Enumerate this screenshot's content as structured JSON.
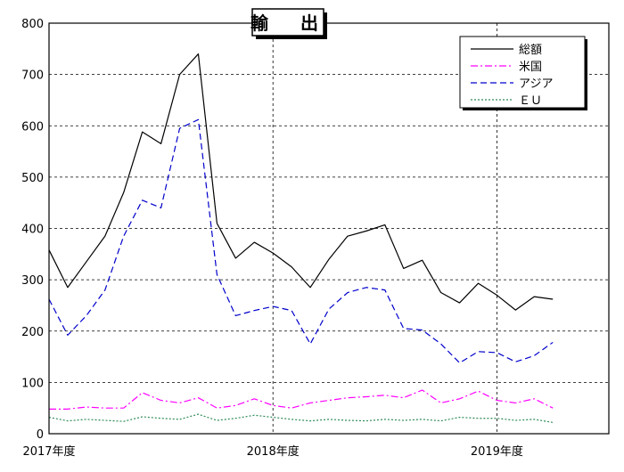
{
  "chart_data": {
    "type": "line",
    "title": "輸　出",
    "xlabel": "",
    "ylabel": "",
    "ylim": [
      0,
      800
    ],
    "yticks": [
      0,
      100,
      200,
      300,
      400,
      500,
      600,
      700,
      800
    ],
    "xlim": [
      0,
      30
    ],
    "x_tick_labels": [
      {
        "label": "2017年度",
        "x": 0
      },
      {
        "label": "2018年度",
        "x": 12
      },
      {
        "label": "2019年度",
        "x": 24
      }
    ],
    "grid": true,
    "legend_position": "top-right",
    "x": [
      0,
      1,
      2,
      3,
      4,
      5,
      6,
      7,
      8,
      9,
      10,
      11,
      12,
      13,
      14,
      15,
      16,
      17,
      18,
      19,
      20,
      21,
      22,
      23,
      24,
      25,
      26,
      27
    ],
    "series": [
      {
        "name": "総額",
        "color": "#000000",
        "style": "solid",
        "values": [
          358,
          285,
          335,
          385,
          470,
          588,
          565,
          700,
          740,
          410,
          342,
          373,
          352,
          325,
          285,
          340,
          385,
          395,
          407,
          322,
          338,
          275,
          255,
          293,
          270,
          241,
          267,
          262
        ]
      },
      {
        "name": "米国",
        "color": "#ff00ff",
        "style": "dashdot",
        "values": [
          48,
          48,
          52,
          50,
          50,
          80,
          65,
          60,
          70,
          50,
          55,
          68,
          55,
          50,
          60,
          65,
          70,
          72,
          75,
          70,
          85,
          60,
          68,
          83,
          65,
          60,
          68,
          50
        ]
      },
      {
        "name": "アジア",
        "color": "#0000cc",
        "style": "dashed",
        "values": [
          262,
          192,
          230,
          280,
          385,
          455,
          440,
          595,
          612,
          310,
          230,
          240,
          248,
          240,
          175,
          243,
          275,
          285,
          280,
          205,
          202,
          175,
          138,
          160,
          158,
          140,
          152,
          178
        ]
      },
      {
        "name": "ＥＵ",
        "color": "#2e8b57",
        "style": "dotted",
        "values": [
          32,
          25,
          28,
          26,
          24,
          33,
          30,
          28,
          38,
          26,
          30,
          36,
          32,
          28,
          25,
          28,
          26,
          25,
          28,
          26,
          28,
          25,
          32,
          30,
          30,
          26,
          28,
          22
        ]
      }
    ]
  }
}
